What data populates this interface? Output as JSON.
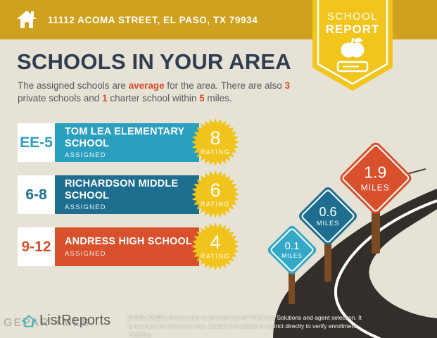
{
  "banner": {
    "address": "11112 ACOMA STREET, EL PASO, TX 79934"
  },
  "badge": {
    "line1": "SCHOOL",
    "line2": "REPORT"
  },
  "title": "SCHOOLS IN YOUR AREA",
  "intro": {
    "part1": "The assigned schools are ",
    "highlight1": "average",
    "part2": " for the area. There are also ",
    "highlight2": "3",
    "part3": " private schools and ",
    "highlight3": "1",
    "part4": " charter school within ",
    "highlight4": "5",
    "part5": " miles."
  },
  "schools": [
    {
      "grades": "EE-5",
      "name": "TOM LEA ELEMENTARY SCHOOL",
      "status": "ASSIGNED",
      "rating": "8",
      "rating_label": "RATING",
      "color": "#2B9FBE"
    },
    {
      "grades": "6-8",
      "name": "RICHARDSON MIDDLE SCHOOL",
      "status": "ASSIGNED",
      "rating": "6",
      "rating_label": "RATING",
      "color": "#1E6E90"
    },
    {
      "grades": "9-12",
      "name": "ANDRESS HIGH SCHOOL",
      "status": "ASSIGNED",
      "rating": "4",
      "rating_label": "RATING",
      "color": "#D8502C"
    }
  ],
  "distance_signs": [
    {
      "value": "0.1",
      "unit": "MILES",
      "color": "#33A9C7"
    },
    {
      "value": "0.6",
      "unit": "MILES",
      "color": "#1E6E90"
    },
    {
      "value": "1.9",
      "unit": "MILES",
      "color": "#D8502C"
    }
  ],
  "watermark": {
    "ghost": "GEPAR +MLS",
    "brand": "ListReports"
  },
  "disclaimer": {
    "label": "DISCLAIMER:",
    "text": " School data is provided by ATTOM Data Solutions and agent selection. It is intended for reference only. Contact the school or district directly to verify enrollment eligibility."
  },
  "colors": {
    "banner_gold": "#D0A11E",
    "badge_yellow": "#F2C51D",
    "heading_navy": "#2E3D4F",
    "accent_orange": "#D8502C",
    "elementary_teal": "#2B9FBE",
    "middle_blue": "#1E6E90",
    "high_orange": "#D8502C",
    "rating_star_yellow": "#F0C41D",
    "sign_light_teal": "#33A9C7",
    "road_charcoal": "#332E2A",
    "post_brown": "#7A4A22",
    "background_beige": "#E7E2D6"
  }
}
